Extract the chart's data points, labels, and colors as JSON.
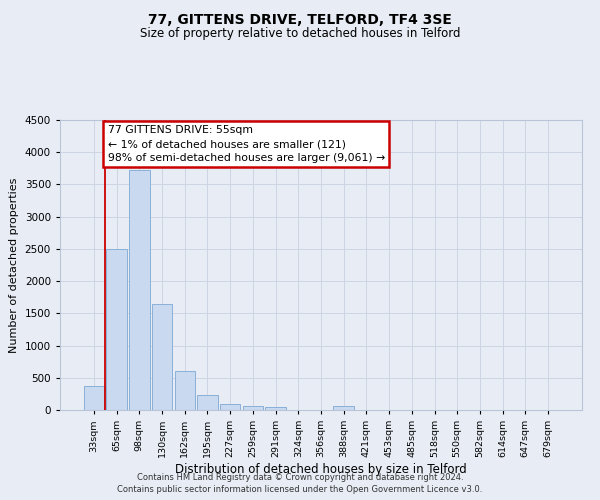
{
  "title": "77, GITTENS DRIVE, TELFORD, TF4 3SE",
  "subtitle": "Size of property relative to detached houses in Telford",
  "xlabel": "Distribution of detached houses by size in Telford",
  "ylabel": "Number of detached properties",
  "bar_labels": [
    "33sqm",
    "65sqm",
    "98sqm",
    "130sqm",
    "162sqm",
    "195sqm",
    "227sqm",
    "259sqm",
    "291sqm",
    "324sqm",
    "356sqm",
    "388sqm",
    "421sqm",
    "453sqm",
    "485sqm",
    "518sqm",
    "550sqm",
    "582sqm",
    "614sqm",
    "647sqm",
    "679sqm"
  ],
  "bar_values": [
    380,
    2500,
    3720,
    1640,
    600,
    240,
    100,
    60,
    40,
    0,
    0,
    60,
    0,
    0,
    0,
    0,
    0,
    0,
    0,
    0,
    0
  ],
  "bar_color": "#c9d9f0",
  "bar_edge_color": "#8ab0d8",
  "annotation_text": "77 GITTENS DRIVE: 55sqm\n← 1% of detached houses are smaller (121)\n98% of semi-detached houses are larger (9,061) →",
  "annotation_box_color": "#ffffff",
  "annotation_box_edge_color": "#cc0000",
  "red_line_x": 0.5,
  "ylim": [
    0,
    4500
  ],
  "yticks": [
    0,
    500,
    1000,
    1500,
    2000,
    2500,
    3000,
    3500,
    4000,
    4500
  ],
  "grid_color": "#cdd5e3",
  "background_color": "#e8edf5",
  "title_fontsize": 10,
  "subtitle_fontsize": 8.5,
  "footer_line1": "Contains HM Land Registry data © Crown copyright and database right 2024.",
  "footer_line2": "Contains public sector information licensed under the Open Government Licence v3.0."
}
